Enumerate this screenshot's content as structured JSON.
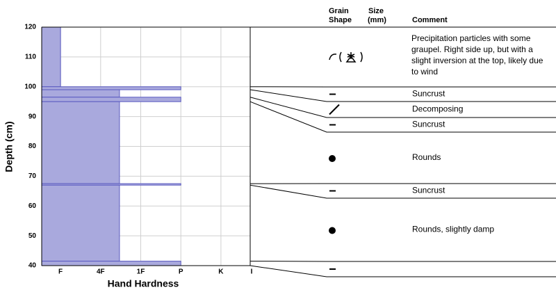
{
  "chart_data": {
    "type": "snow-profile",
    "y_label": "Depth (cm)",
    "x_label": "Hand Hardness",
    "ylim": [
      40,
      120
    ],
    "yticks": [
      40,
      50,
      60,
      70,
      80,
      90,
      100,
      110,
      120
    ],
    "xlim": [
      0.53,
      5.73
    ],
    "xticks": [
      {
        "value": 1,
        "label": "F"
      },
      {
        "value": 2,
        "label": "4F"
      },
      {
        "value": 3,
        "label": "1F"
      },
      {
        "value": 4,
        "label": "P"
      },
      {
        "value": 5,
        "label": "K"
      },
      {
        "value": 6,
        "label": "I"
      }
    ],
    "grid": true,
    "color": "#a9a9dd",
    "edge_color": "#5a5ac0",
    "columns": {
      "grain": [
        "Grain",
        "Shape"
      ],
      "size": [
        "Size",
        "(mm)"
      ],
      "comment": "Comment"
    },
    "layers": [
      {
        "top": 120,
        "bottom": 100,
        "hardness": 1,
        "comment": "Precipitation particles with some graupel. Right side up, but with a slight inversion at the top, likely due to wind"
      },
      {
        "top": 100,
        "bottom": 99,
        "hardness": 4,
        "comment": "Suncrust"
      },
      {
        "top": 99,
        "bottom": 96.5,
        "hardness": 2.47,
        "comment": "Decomposing"
      },
      {
        "top": 96.5,
        "bottom": 95,
        "hardness": 4,
        "comment": "Suncrust"
      },
      {
        "top": 95,
        "bottom": 67.5,
        "hardness": 2.47,
        "comment": "Rounds"
      },
      {
        "top": 67.5,
        "bottom": 67,
        "hardness": 4,
        "comment": "Suncrust"
      },
      {
        "top": 67,
        "bottom": 41.5,
        "hardness": 2.47,
        "comment": "Rounds, slightly damp"
      },
      {
        "top": 41.5,
        "bottom": 40,
        "hardness": 4
      }
    ]
  }
}
